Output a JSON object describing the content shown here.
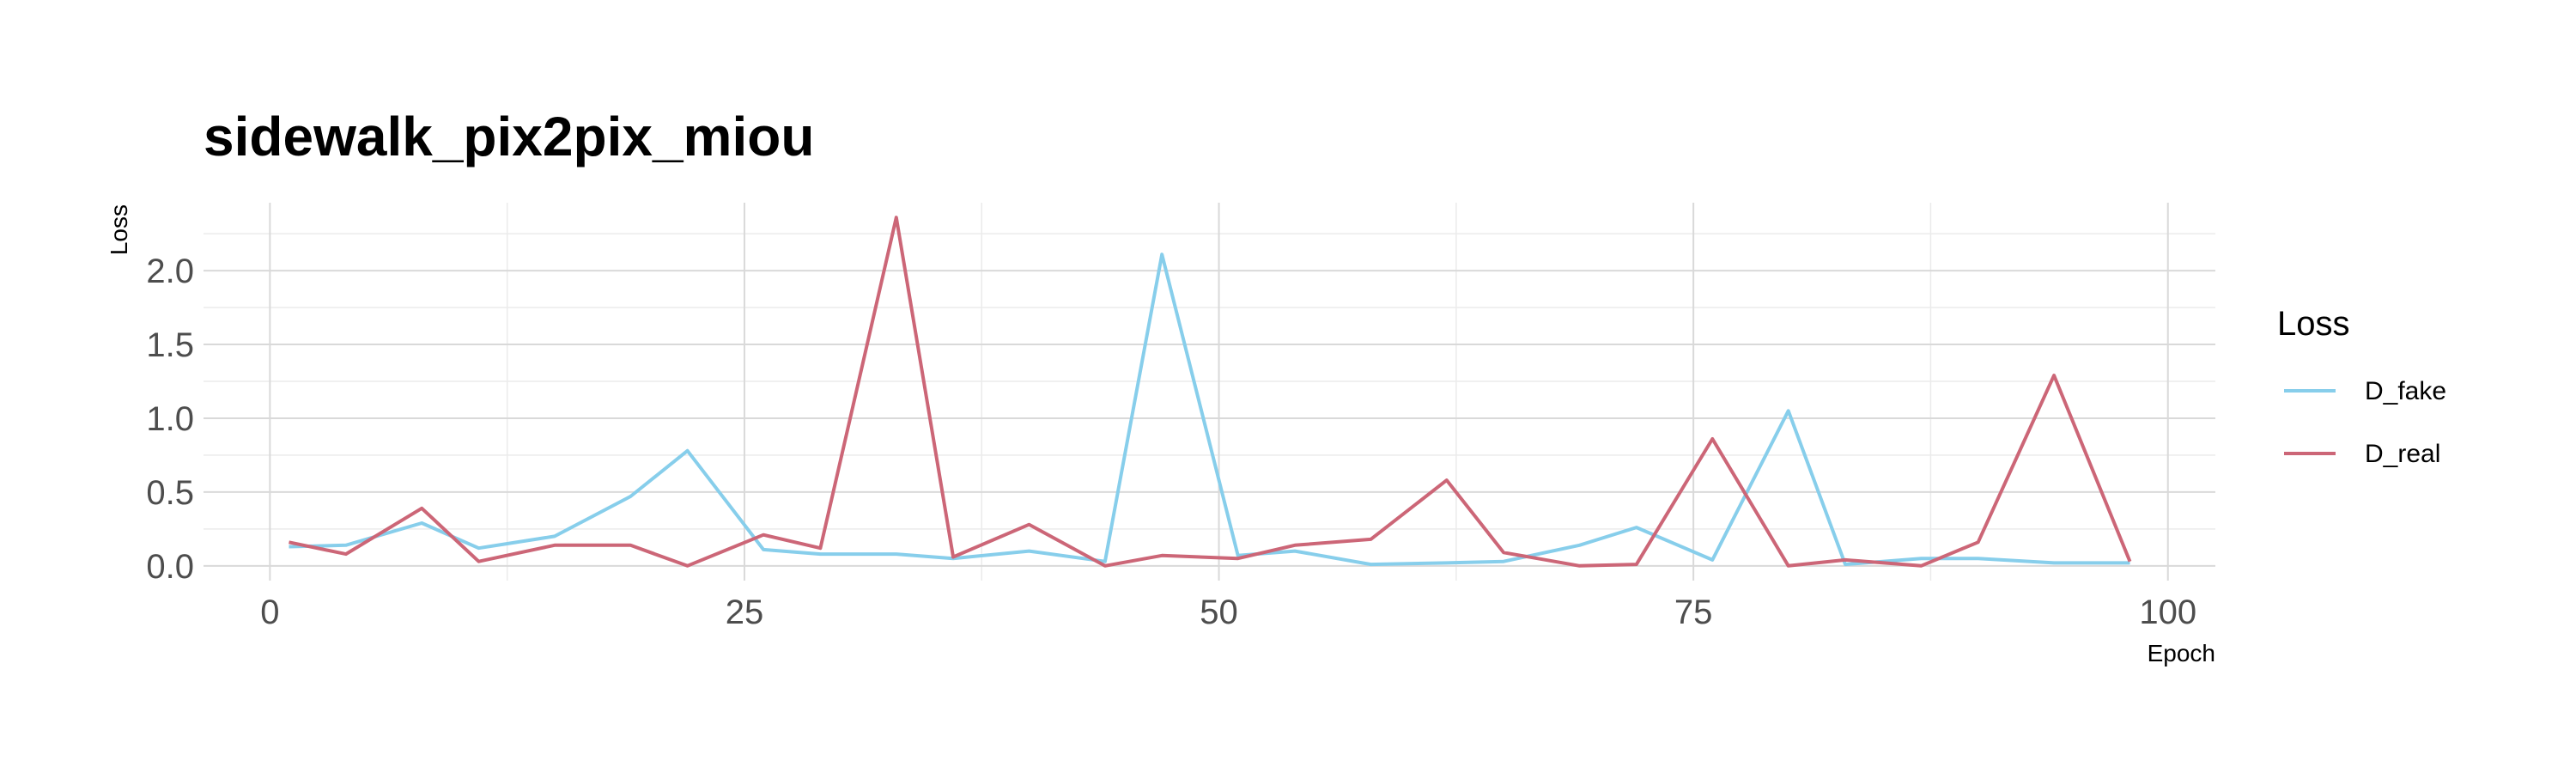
{
  "chart_data": {
    "type": "line",
    "title": "sidewalk_pix2pix_miou",
    "xlabel": "Epoch",
    "ylabel": "Loss",
    "xlim": [
      -3.5,
      102.5
    ],
    "ylim": [
      -0.1,
      2.46
    ],
    "x_ticks": [
      0,
      25,
      50,
      75,
      100
    ],
    "x_tick_labels": [
      "0",
      "25",
      "50",
      "75",
      "100"
    ],
    "x_minor_ticks": [
      12.5,
      37.5,
      62.5,
      87.5
    ],
    "y_ticks": [
      0.0,
      0.5,
      1.0,
      1.5,
      2.0
    ],
    "y_tick_labels": [
      "0.0",
      "0.5",
      "1.0",
      "1.5",
      "2.0"
    ],
    "y_minor_ticks": [
      0.25,
      0.75,
      1.25,
      1.75,
      2.25
    ],
    "grid": true,
    "legend": {
      "title": "Loss",
      "position": "right"
    },
    "series": [
      {
        "name": "D_fake",
        "color": "#87ceeb",
        "points": [
          [
            1,
            0.13
          ],
          [
            4,
            0.14
          ],
          [
            8,
            0.29
          ],
          [
            11,
            0.12
          ],
          [
            15,
            0.2
          ],
          [
            19,
            0.47
          ],
          [
            22,
            0.78
          ],
          [
            26,
            0.11
          ],
          [
            29,
            0.08
          ],
          [
            33,
            0.08
          ],
          [
            36,
            0.05
          ],
          [
            40,
            0.1
          ],
          [
            44,
            0.03
          ],
          [
            47,
            2.11
          ],
          [
            51,
            0.07
          ],
          [
            54,
            0.1
          ],
          [
            58,
            0.01
          ],
          [
            62,
            0.02
          ],
          [
            65,
            0.03
          ],
          [
            69,
            0.14
          ],
          [
            72,
            0.26
          ],
          [
            76,
            0.04
          ],
          [
            80,
            1.05
          ],
          [
            83,
            0.01
          ],
          [
            87,
            0.05
          ],
          [
            90,
            0.05
          ],
          [
            94,
            0.02
          ],
          [
            98,
            0.02
          ]
        ]
      },
      {
        "name": "D_real",
        "color": "#cc6677",
        "points": [
          [
            1,
            0.16
          ],
          [
            4,
            0.08
          ],
          [
            8,
            0.39
          ],
          [
            11,
            0.03
          ],
          [
            15,
            0.14
          ],
          [
            19,
            0.14
          ],
          [
            22,
            0.0
          ],
          [
            26,
            0.21
          ],
          [
            29,
            0.12
          ],
          [
            33,
            2.36
          ],
          [
            36,
            0.06
          ],
          [
            40,
            0.28
          ],
          [
            44,
            0.0
          ],
          [
            47,
            0.07
          ],
          [
            51,
            0.05
          ],
          [
            54,
            0.14
          ],
          [
            58,
            0.18
          ],
          [
            62,
            0.58
          ],
          [
            65,
            0.09
          ],
          [
            69,
            0.0
          ],
          [
            72,
            0.01
          ],
          [
            76,
            0.86
          ],
          [
            80,
            0.0
          ],
          [
            83,
            0.04
          ],
          [
            87,
            0.0
          ],
          [
            90,
            0.16
          ],
          [
            94,
            1.29
          ],
          [
            98,
            0.03
          ]
        ]
      }
    ]
  }
}
